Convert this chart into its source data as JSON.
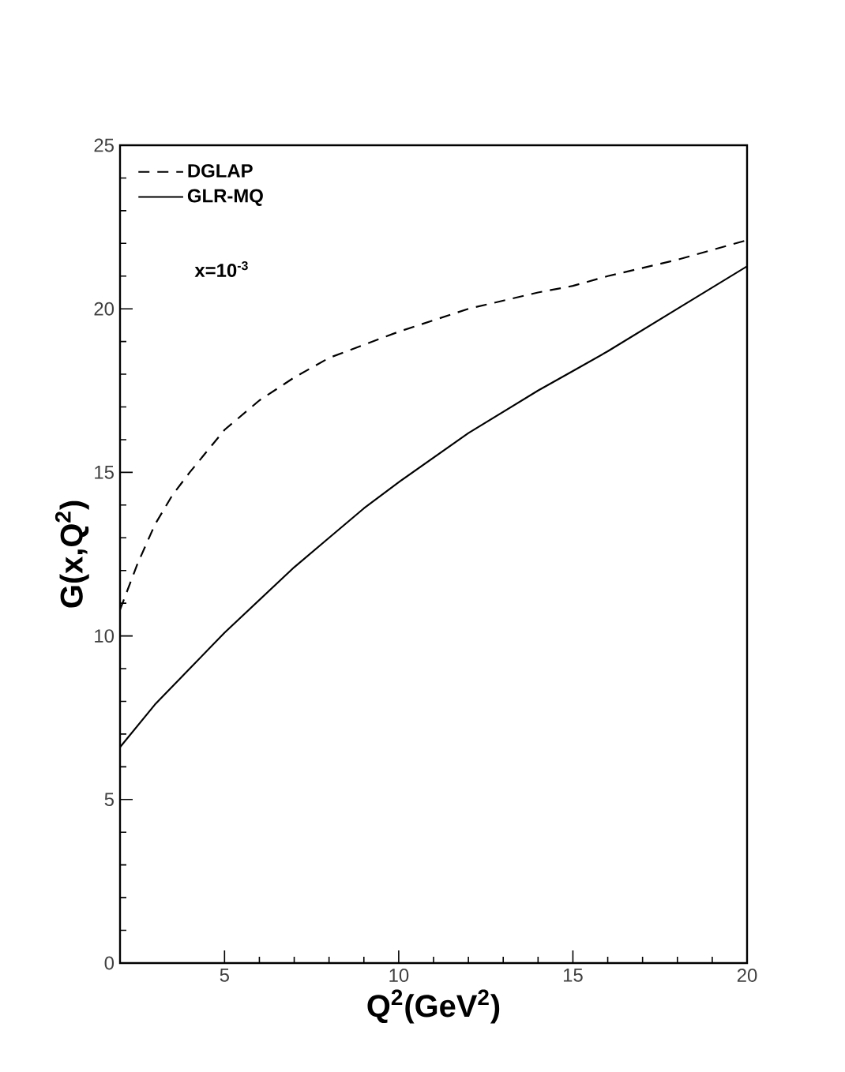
{
  "chart_data": {
    "type": "line",
    "xlabel": "Q$^{2}$(GeV$^{2}$)",
    "ylabel": "G(x,Q$^{2}$)",
    "annotations": [
      "x=10$^{-3}$"
    ],
    "xlim": [
      2,
      20
    ],
    "ylim": [
      0,
      25
    ],
    "xticks": [
      5,
      10,
      15,
      20
    ],
    "yticks": [
      0,
      5,
      10,
      15,
      20,
      25
    ],
    "legend": "top left",
    "grid": false,
    "marker": "none",
    "series": [
      {
        "name": "DGLAP",
        "color": "#000000",
        "line_style": "dashed",
        "x": [
          2,
          2.5,
          3,
          3.5,
          4,
          5,
          6,
          7,
          8,
          9,
          10,
          12,
          14,
          15,
          16,
          18,
          20
        ],
        "values": [
          10.8,
          12.2,
          13.4,
          14.3,
          15.0,
          16.3,
          17.2,
          17.9,
          18.5,
          18.9,
          19.3,
          20.0,
          20.5,
          20.7,
          21.0,
          21.5,
          22.1
        ]
      },
      {
        "name": "GLR-MQ",
        "color": "#000000",
        "line_style": "solid",
        "x": [
          2,
          3,
          4,
          5,
          6,
          7,
          8,
          9,
          10,
          12,
          14,
          15,
          16,
          18,
          20
        ],
        "values": [
          6.6,
          7.9,
          9.0,
          10.1,
          11.1,
          12.1,
          13.0,
          13.9,
          14.7,
          16.2,
          17.5,
          18.1,
          18.7,
          20.0,
          21.3
        ]
      }
    ]
  }
}
